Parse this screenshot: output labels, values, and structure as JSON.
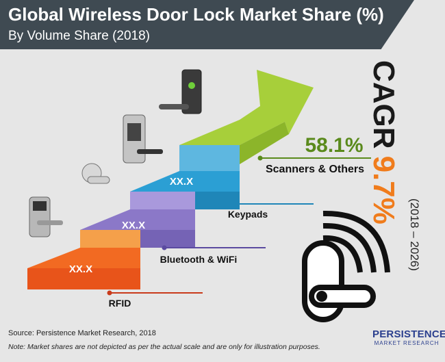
{
  "header": {
    "title": "Global Wireless Door Lock Market Share (%)",
    "subtitle": "By Volume Share (2018)"
  },
  "cagr": {
    "label": "CAGR",
    "value": "9.7%",
    "period": "(2018 – 2026)"
  },
  "footer": {
    "source": "Source: Persistence Market Research, 2018",
    "note": "Note: Market shares are not depicted as per the actual scale and are only for illustration purposes."
  },
  "logo": {
    "name": "PERSISTENCE",
    "tagline": "MARKET RESEARCH"
  },
  "colors": {
    "rfid": "#f26a22",
    "bluetooth": "#8b78c8",
    "keypads": "#2b9fd4",
    "scanners": "#a7cf3a",
    "header": "#3f4a52",
    "cagr_value": "#f07c1c"
  },
  "chart_data": {
    "type": "bar",
    "title": "Global Wireless Door Lock Market Share (%)",
    "subtitle": "By Volume Share (2018)",
    "categories": [
      "RFID",
      "Bluetooth & WiFi",
      "Keypads",
      "Scanners & Others"
    ],
    "labels": [
      "XX.X",
      "XX.X",
      "XX.X",
      "58.1%"
    ],
    "values": [
      null,
      null,
      null,
      58.1
    ],
    "unit": "%"
  }
}
